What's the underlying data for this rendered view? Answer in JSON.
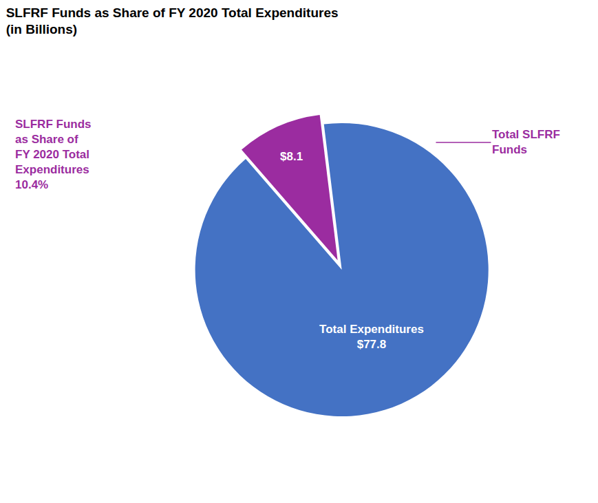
{
  "chart_data": {
    "type": "pie",
    "title": "SLFRF Funds as Share of FY 2020 Total Expenditures",
    "subtitle": "(in Billions)",
    "values": [
      77.8,
      8.1
    ],
    "value_labels": [
      "Total Expenditures\n$77.8",
      "$8.1"
    ],
    "colors": [
      "#4472C4",
      "#9B2CA0"
    ],
    "data_labels": true,
    "annotations": [
      {
        "text": "SLFRF Funds\nas Share of\nFY 2020 Total\nExpenditures\n10.4%",
        "color": "#9B2CA0"
      },
      {
        "text": "Total SLFRF\nFunds",
        "color": "#9B2CA0"
      }
    ]
  }
}
